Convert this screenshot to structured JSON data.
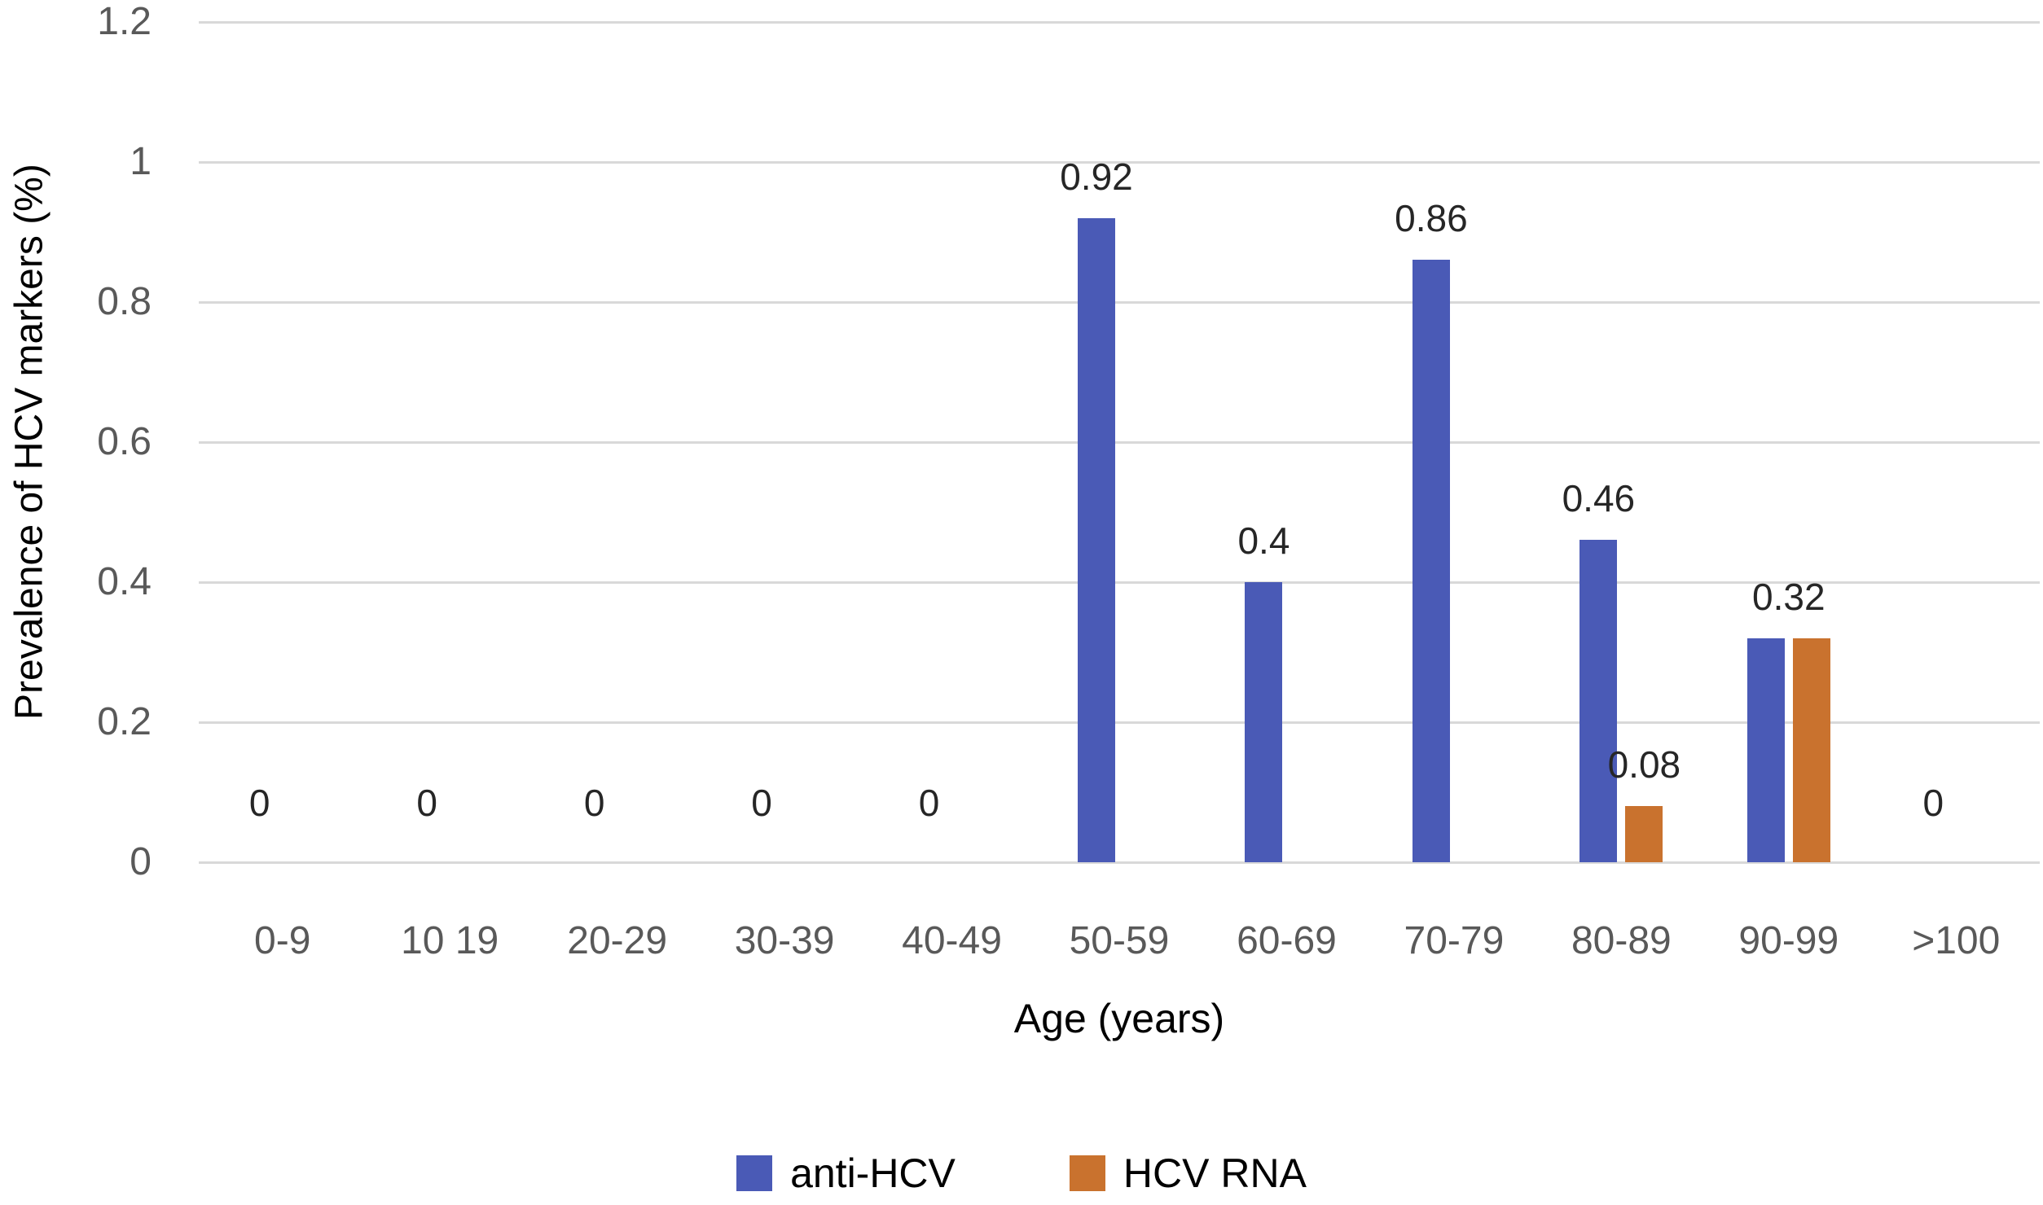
{
  "chart_data": {
    "type": "bar",
    "title": "",
    "xlabel": "Age (years)",
    "ylabel": "Prevalence of HCV markers (%)",
    "categories": [
      "0-9",
      "10 19",
      "20-29",
      "30-39",
      "40-49",
      "50-59",
      "60-69",
      "70-79",
      "80-89",
      "90-99",
      ">100"
    ],
    "series": [
      {
        "name": "anti-HCV",
        "color": "#4a5ab6",
        "values": [
          0,
          0,
          0,
          0,
          0,
          0.92,
          0.4,
          0.86,
          0.46,
          0.32,
          0
        ]
      },
      {
        "name": "HCV RNA",
        "color": "#c9722e",
        "values": [
          0,
          0,
          0,
          0,
          0,
          0,
          0,
          0,
          0.08,
          0.32,
          0
        ]
      }
    ],
    "data_labels": [
      "0",
      "0",
      "0",
      "0",
      "0",
      "0.92",
      "0.4",
      "0.86",
      "0.46 | 0.08",
      "0.32",
      "0"
    ],
    "ylim": [
      0,
      1.2
    ],
    "yticks": [
      "0",
      "0.2",
      "0.4",
      "0.6",
      "0.8",
      "1",
      "1.2"
    ],
    "grid": true,
    "grid_color": "#d9d9d9",
    "legend_position": "bottom",
    "legend": [
      "anti-HCV",
      "HCV RNA"
    ]
  }
}
